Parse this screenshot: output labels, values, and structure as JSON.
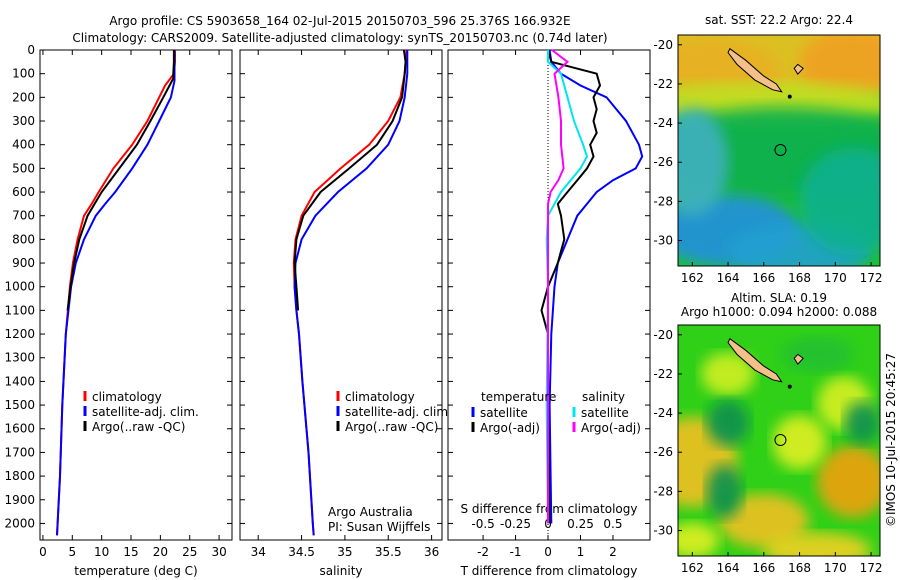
{
  "title_line1": "Argo profile: CS 5903658_164 02-Jul-2015 20150703_596 25.376S 166.932E",
  "title_line2": "Climatology: CARS2009. Satellite-adjusted climatology: synTS_20150703.nc (0.74d later)",
  "colors": {
    "climatology": "#ff0000",
    "satellite": "#0000ff",
    "argo": "#000000",
    "s_satellite": "#00e5ee",
    "s_argo": "#ff00ff"
  },
  "chart_data": [
    {
      "type": "line",
      "xlabel": "temperature (deg C)",
      "ylabel": "",
      "xlim": [
        -0.5,
        32.2
      ],
      "ylim": [
        2070,
        0
      ],
      "xticks": [
        0,
        5,
        10,
        15,
        20,
        25,
        30
      ],
      "yticks": [
        0,
        100,
        200,
        300,
        400,
        500,
        600,
        700,
        800,
        900,
        1000,
        1100,
        1200,
        1300,
        1400,
        1500,
        1600,
        1700,
        1800,
        1900,
        2000
      ],
      "legend": [
        "climatology",
        "satellite-adj. clim.",
        "Argo(..raw -QC)"
      ],
      "series": [
        {
          "name": "climatology",
          "depth": [
            0,
            50,
            100,
            150,
            200,
            300,
            400,
            500,
            600,
            650,
            700,
            800,
            900,
            1000,
            1200,
            1500,
            1800,
            2000,
            2050
          ],
          "values": [
            22.5,
            22.5,
            22.3,
            20.8,
            19.8,
            17.8,
            15.2,
            12.0,
            9.5,
            8.3,
            7.0,
            5.9,
            5.1,
            4.6,
            3.9,
            3.3,
            2.9,
            2.5,
            2.4
          ]
        },
        {
          "name": "satellite-adj. clim.",
          "depth": [
            0,
            50,
            100,
            130,
            200,
            300,
            400,
            500,
            600,
            650,
            700,
            800,
            900,
            1000,
            1200,
            1500,
            1800,
            2000,
            2050
          ],
          "values": [
            22.4,
            22.4,
            22.4,
            22.4,
            21.8,
            19.8,
            17.8,
            15.2,
            12.3,
            10.6,
            9.0,
            7.0,
            5.6,
            4.8,
            3.9,
            3.3,
            2.9,
            2.5,
            2.4
          ]
        },
        {
          "name": "Argo(..raw -QC)",
          "depth": [
            0,
            50,
            100,
            120,
            200,
            300,
            400,
            500,
            600,
            650,
            700,
            800,
            900,
            1000,
            1100
          ],
          "values": [
            22.3,
            22.3,
            22.2,
            22.2,
            20.5,
            18.3,
            16.0,
            13.0,
            10.0,
            8.8,
            7.6,
            6.2,
            5.3,
            4.7,
            4.2
          ]
        }
      ]
    },
    {
      "type": "line",
      "xlabel": "salinity",
      "xlim": [
        33.79,
        36.12
      ],
      "ylim": [
        2070,
        0
      ],
      "xticks": [
        34,
        34.5,
        35,
        35.5,
        36
      ],
      "legend": [
        "climatology",
        "satellite-adj. clim.",
        "Argo(..raw -QC)"
      ],
      "annotations": [
        "Argo Australia",
        "PI: Susan Wijffels"
      ],
      "series": [
        {
          "name": "climatology",
          "depth": [
            0,
            50,
            100,
            200,
            300,
            400,
            500,
            600,
            700,
            800,
            900,
            1000,
            1100,
            1200,
            1400,
            1700,
            2000,
            2050
          ],
          "values": [
            35.71,
            35.7,
            35.69,
            35.64,
            35.5,
            35.28,
            34.95,
            34.65,
            34.5,
            34.43,
            34.41,
            34.42,
            34.44,
            34.47,
            34.51,
            34.58,
            34.63,
            34.64
          ]
        },
        {
          "name": "satellite-adj. clim.",
          "depth": [
            0,
            50,
            100,
            200,
            300,
            400,
            500,
            600,
            700,
            800,
            900,
            1000,
            1100,
            1200,
            1400,
            1700,
            2000,
            2050
          ],
          "values": [
            35.72,
            35.72,
            35.72,
            35.69,
            35.63,
            35.5,
            35.25,
            34.92,
            34.66,
            34.5,
            34.43,
            34.42,
            34.44,
            34.47,
            34.51,
            34.58,
            34.63,
            34.64
          ]
        },
        {
          "name": "Argo(..raw -QC)",
          "depth": [
            0,
            50,
            100,
            200,
            300,
            400,
            500,
            600,
            700,
            800,
            900,
            1000,
            1100
          ],
          "values": [
            35.68,
            35.7,
            35.69,
            35.66,
            35.55,
            35.37,
            35.05,
            34.72,
            34.52,
            34.44,
            34.42,
            34.44,
            34.46
          ]
        }
      ]
    },
    {
      "type": "line",
      "xlabel": "T difference from climatology",
      "xlabel_top": "S difference from climatology",
      "xlim": [
        -3.08,
        3.14
      ],
      "ylim": [
        2070,
        0
      ],
      "xticks": [
        -2,
        -1,
        0,
        1,
        2
      ],
      "xticks_top": [
        -0.5,
        -0.25,
        0,
        0.25,
        0.5
      ],
      "xtick_labels_top": [
        "-0.5",
        "-0.25",
        "0",
        "0.25",
        "0.5"
      ],
      "legend_titles": [
        "temperature",
        "salinity"
      ],
      "legend": [
        "satellite",
        "Argo(-adj)",
        "satellite",
        "Argo(-adj)"
      ],
      "series": [
        {
          "name": "T satellite",
          "depth": [
            0,
            50,
            100,
            150,
            200,
            300,
            400,
            450,
            500,
            550,
            600,
            650,
            700,
            800,
            900,
            1000,
            1200,
            1500,
            2000
          ],
          "values": [
            0.05,
            0.1,
            0.4,
            1.0,
            1.8,
            2.4,
            2.8,
            2.9,
            2.7,
            2.0,
            1.5,
            1.2,
            0.9,
            0.6,
            0.3,
            0.2,
            0.1,
            0.05,
            0.1
          ]
        },
        {
          "name": "T Argo(-adj)",
          "depth": [
            0,
            50,
            100,
            150,
            200,
            250,
            300,
            350,
            400,
            450,
            500,
            550,
            600,
            650,
            700,
            800,
            850,
            900,
            1000,
            1100,
            1200,
            1500,
            2000
          ],
          "values": [
            0.0,
            0.1,
            1.5,
            1.6,
            1.4,
            1.5,
            1.4,
            1.5,
            1.3,
            1.4,
            1.2,
            0.9,
            0.6,
            0.3,
            0.4,
            0.5,
            0.4,
            0.3,
            0.0,
            -0.2,
            0.0,
            0.0,
            0.05
          ]
        },
        {
          "name": "S satellite",
          "depth": [
            0,
            50,
            100,
            200,
            300,
            400,
            450,
            500,
            600,
            700,
            800,
            1000,
            1500,
            2000
          ],
          "values": [
            0.0,
            0.0,
            0.1,
            0.15,
            0.2,
            0.27,
            0.3,
            0.25,
            0.1,
            0.0,
            -0.01,
            0.0,
            -0.01,
            0.0
          ]
        },
        {
          "name": "S Argo(-adj)",
          "depth": [
            0,
            50,
            100,
            200,
            300,
            400,
            500,
            550,
            600,
            650,
            700,
            800,
            1000,
            1500,
            2000
          ],
          "values": [
            0.03,
            0.15,
            0.05,
            0.08,
            0.1,
            0.1,
            0.12,
            0.08,
            0.02,
            0.0,
            0.0,
            0.0,
            0.0,
            0.0,
            0.0
          ]
        }
      ]
    },
    {
      "type": "heatmap",
      "title": "sat. SST: 22.2 Argo: 22.4",
      "xlim": [
        161.2,
        172.5
      ],
      "ylim": [
        -31.3,
        -19.5
      ],
      "xticks": [
        162,
        164,
        166,
        168,
        170,
        172
      ],
      "yticks": [
        -20,
        -22,
        -24,
        -26,
        -28,
        -30
      ],
      "profile_location": [
        166.932,
        -25.376
      ]
    },
    {
      "type": "heatmap",
      "title": "Altim. SLA: 0.19",
      "subtitle": "Argo h1000: 0.094 h2000: 0.088",
      "xlim": [
        161.2,
        172.5
      ],
      "ylim": [
        -31.3,
        -19.5
      ],
      "xticks": [
        162,
        164,
        166,
        168,
        170,
        172
      ],
      "yticks": [
        -20,
        -22,
        -24,
        -26,
        -28,
        -30
      ],
      "profile_location": [
        166.932,
        -25.376
      ]
    }
  ],
  "credit": "©IMOS 10-Jul-2015 20:45:27"
}
